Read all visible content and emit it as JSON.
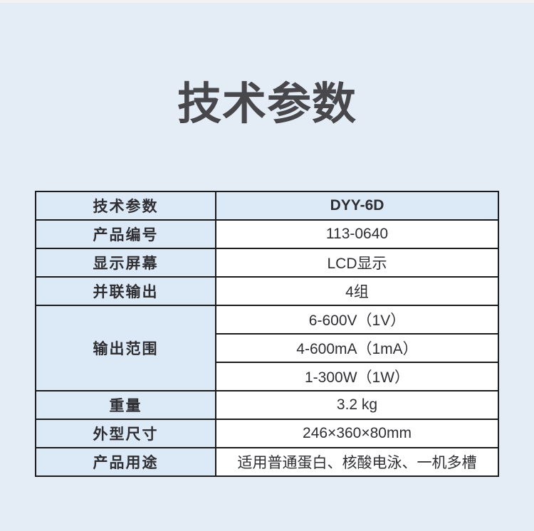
{
  "page": {
    "title": "技术参数",
    "background_color": "#e4edf6",
    "top_strip_color": "#f2f2f4"
  },
  "table": {
    "border_color": "#1b1b1b",
    "label_cell_color": "#dce9f6",
    "value_cell_color": "#ffffff",
    "column_headers": {
      "label": "技术参数",
      "value": "DYY-6D"
    },
    "rows": [
      {
        "label": "产品编号",
        "value": "113-0640"
      },
      {
        "label": "显示屏幕",
        "value": "LCD显示"
      },
      {
        "label": "并联输出",
        "value": "4组"
      },
      {
        "label": "输出范围",
        "values": [
          "6-600V（1V）",
          "4-600mA（1mA）",
          "1-300W（1W）"
        ]
      },
      {
        "label": "重量",
        "value": "3.2 kg"
      },
      {
        "label": "外型尺寸",
        "value": "246×360×80mm"
      },
      {
        "label": "产品用途",
        "value": "适用普通蛋白、核酸电泳、一机多槽"
      }
    ]
  }
}
